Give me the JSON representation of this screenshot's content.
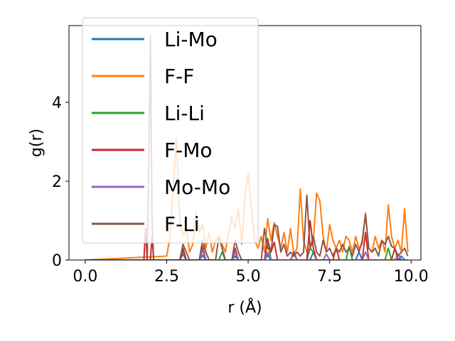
{
  "chart_data": {
    "type": "line",
    "xlabel": "r (Å)",
    "ylabel": "g(r)",
    "xlim": [
      -0.5,
      10.3
    ],
    "ylim": [
      0,
      5.95
    ],
    "xticks": [
      0.0,
      2.5,
      5.0,
      7.5,
      10.0
    ],
    "xtick_labels": [
      "0.0",
      "2.5",
      "5.0",
      "7.5",
      "10.0"
    ],
    "yticks": [
      0,
      2,
      4
    ],
    "ytick_labels": [
      "0",
      "2",
      "4"
    ],
    "grid": false,
    "legend_position": "upper-left",
    "series": [
      {
        "name": "Li-Mo",
        "color": "#1f77b4",
        "x": [
          0,
          2.9,
          3.0,
          3.1,
          3.5,
          3.6,
          3.7,
          4.5,
          4.6,
          4.7,
          5.5,
          5.6,
          5.7,
          6.9,
          7.0,
          7.1,
          8.3,
          8.4,
          8.5,
          9.6,
          9.7,
          9.8,
          9.9
        ],
        "y": [
          0,
          0,
          0.15,
          0,
          0,
          0.12,
          0,
          0,
          0.1,
          0,
          0,
          0.12,
          0,
          0,
          0.2,
          0,
          0,
          0.2,
          0,
          0,
          0.1,
          0,
          0
        ]
      },
      {
        "name": "F-F",
        "color": "#ff7f0e",
        "x": [
          0,
          2.5,
          2.6,
          2.7,
          2.8,
          2.9,
          3.0,
          3.1,
          3.2,
          3.3,
          3.4,
          3.5,
          3.6,
          3.7,
          3.8,
          3.9,
          4.0,
          4.1,
          4.2,
          4.3,
          4.4,
          4.5,
          4.6,
          4.7,
          4.8,
          4.9,
          5.0,
          5.1,
          5.2,
          5.3,
          5.4,
          5.5,
          5.6,
          5.7,
          5.8,
          5.9,
          6.0,
          6.1,
          6.2,
          6.3,
          6.4,
          6.5,
          6.6,
          6.7,
          6.8,
          6.9,
          7.0,
          7.1,
          7.2,
          7.3,
          7.4,
          7.5,
          7.6,
          7.7,
          7.8,
          7.9,
          8.0,
          8.1,
          8.2,
          8.3,
          8.4,
          8.5,
          8.6,
          8.7,
          8.8,
          8.9,
          9.0,
          9.1,
          9.2,
          9.3,
          9.4,
          9.5,
          9.6,
          9.7,
          9.8,
          9.9
        ],
        "y": [
          0,
          0.1,
          0.6,
          1.8,
          3.1,
          1.0,
          0.6,
          0.8,
          0.2,
          0.4,
          1.2,
          0.7,
          0.9,
          0.3,
          0.7,
          0.2,
          0.5,
          0.6,
          0.4,
          0.2,
          0.7,
          1.1,
          0.8,
          1.3,
          0.4,
          1.6,
          2.2,
          1.3,
          0.5,
          0.3,
          0.6,
          0.2,
          1.05,
          0.5,
          0.95,
          0.6,
          0.3,
          0.7,
          0.2,
          0.8,
          0.15,
          0.3,
          1.8,
          0.5,
          0.2,
          0.3,
          0.5,
          1.7,
          1.5,
          0.6,
          0.2,
          0.9,
          0.5,
          0.3,
          0.5,
          0.2,
          0.6,
          0.5,
          0.2,
          0.6,
          0.3,
          0.4,
          1.2,
          0.3,
          0.2,
          0.6,
          0.3,
          0.5,
          0.2,
          1.4,
          0.6,
          0.3,
          0.5,
          0.2,
          1.3,
          0.2
        ]
      },
      {
        "name": "Li-Li",
        "color": "#2ca02c",
        "x": [
          0,
          2.9,
          3.0,
          3.1,
          4.1,
          4.2,
          4.3,
          5.5,
          5.6,
          5.7,
          6.8,
          6.9,
          7.0,
          7.1,
          8.0,
          8.1,
          8.2,
          9.2,
          9.3,
          9.4,
          9.9
        ],
        "y": [
          0,
          0,
          0.25,
          0,
          0,
          0.2,
          0,
          0,
          0.55,
          0,
          0,
          0.3,
          0.2,
          0,
          0,
          0.35,
          0,
          0,
          0.3,
          0,
          0
        ]
      },
      {
        "name": "F-Mo",
        "color": "#d62728",
        "x": [
          0,
          1.8,
          1.85,
          1.9,
          2.0,
          2.05,
          2.1,
          2.9,
          3.0,
          3.1,
          3.5,
          3.6,
          3.7,
          4.5,
          4.6,
          4.7,
          5.5,
          5.6,
          5.7,
          5.8,
          5.9,
          6.3,
          6.4,
          6.5,
          6.8,
          6.9,
          7.0,
          7.1,
          7.6,
          7.7,
          7.8,
          8.5,
          8.6,
          8.7,
          9.4,
          9.5,
          9.6,
          9.9
        ],
        "y": [
          0,
          0,
          0.8,
          0,
          0,
          0.6,
          0,
          0,
          0.3,
          0,
          0,
          0.35,
          0,
          0,
          0.3,
          0,
          0,
          0.5,
          0.2,
          0.45,
          0,
          0,
          0.2,
          0,
          0,
          1.0,
          0.3,
          0,
          0,
          0.3,
          0,
          0,
          0.7,
          0,
          0,
          0.3,
          0,
          0
        ]
      },
      {
        "name": "Mo-Mo",
        "color": "#9467bd",
        "x": [
          0,
          3.5,
          3.6,
          3.7,
          4.5,
          4.6,
          4.7,
          5.5,
          5.6,
          5.7,
          6.3,
          6.4,
          6.5,
          7.3,
          7.4,
          7.5,
          8.5,
          8.6,
          8.7,
          9.5,
          9.6,
          9.7,
          9.9
        ],
        "y": [
          0,
          0,
          0.25,
          0,
          0,
          0.2,
          0,
          0,
          0.2,
          0,
          0,
          0.15,
          0,
          0,
          0.15,
          0,
          0,
          0.2,
          0,
          0,
          0.15,
          0,
          0
        ]
      },
      {
        "name": "F-Li",
        "color": "#8c564b",
        "x": [
          0,
          1.9,
          1.95,
          2.0,
          2.05,
          2.1,
          2.9,
          3.0,
          3.1,
          3.2,
          3.5,
          3.6,
          3.7,
          3.8,
          4.0,
          4.1,
          4.2,
          4.3,
          4.5,
          4.6,
          4.7,
          4.8,
          5.4,
          5.5,
          5.6,
          5.7,
          5.8,
          5.9,
          6.0,
          6.1,
          6.2,
          6.3,
          6.4,
          6.5,
          6.6,
          6.7,
          6.8,
          6.9,
          7.0,
          7.1,
          7.2,
          7.3,
          7.4,
          7.5,
          7.6,
          7.7,
          7.8,
          7.9,
          8.0,
          8.1,
          8.2,
          8.3,
          8.4,
          8.5,
          8.6,
          8.7,
          8.8,
          8.9,
          9.0,
          9.1,
          9.2,
          9.3,
          9.4,
          9.5,
          9.6,
          9.7,
          9.8,
          9.9
        ],
        "y": [
          0,
          0,
          2.5,
          5.7,
          1.0,
          0,
          0,
          0.4,
          0.2,
          0,
          0,
          0.5,
          0.2,
          0,
          0,
          0.6,
          0.3,
          0,
          0,
          0.5,
          0.2,
          0,
          0,
          0.8,
          0.3,
          0.2,
          0.9,
          0.85,
          0.2,
          0.4,
          0.1,
          0.2,
          0.1,
          0.2,
          0.1,
          0.2,
          1.65,
          0.3,
          0.6,
          0.2,
          0.1,
          0.5,
          0.2,
          0.3,
          0.1,
          0.3,
          0.2,
          0.4,
          0.2,
          0.3,
          0.1,
          0.4,
          0.2,
          0.5,
          1.15,
          0.3,
          0.2,
          0.3,
          0.1,
          0.5,
          0.4,
          0.6,
          0.35,
          0.3,
          0.1,
          0.2,
          0.3,
          0.1
        ]
      }
    ]
  }
}
